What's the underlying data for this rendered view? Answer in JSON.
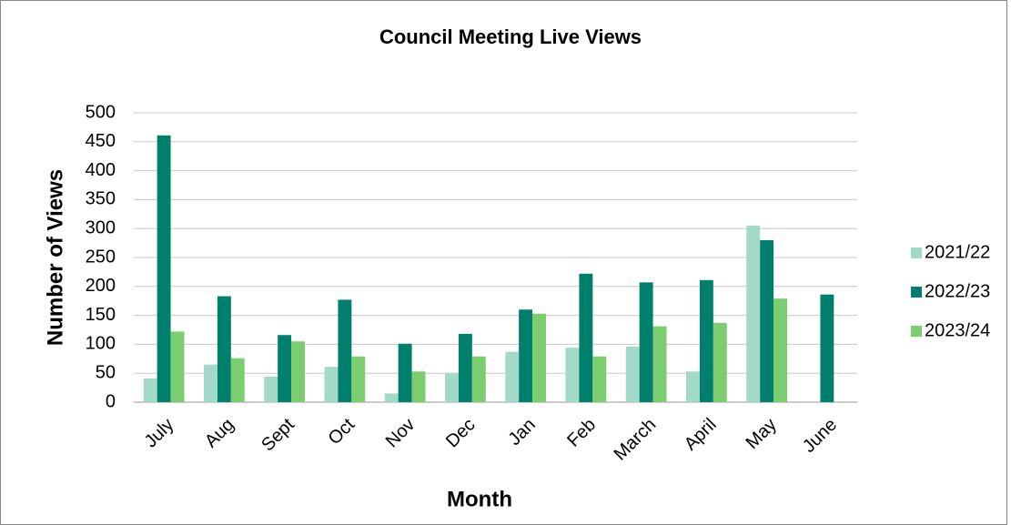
{
  "chart_data": {
    "type": "bar",
    "title": "Council Meeting Live Views",
    "x_label": "Month",
    "y_label": "Number of Views",
    "categories": [
      "July",
      "Aug",
      "Sept",
      "Oct",
      "Nov",
      "Dec",
      "Jan",
      "Feb",
      "March",
      "April",
      "May",
      "June"
    ],
    "series": [
      {
        "name": "2021/22",
        "color": "#a3d9c9",
        "values": [
          41,
          65,
          44,
          61,
          15,
          50,
          87,
          94,
          96,
          53,
          305,
          null
        ]
      },
      {
        "name": "2022/23",
        "color": "#00806c",
        "values": [
          461,
          183,
          116,
          177,
          101,
          118,
          160,
          222,
          207,
          211,
          280,
          186
        ]
      },
      {
        "name": "2023/24",
        "color": "#7ccd6f",
        "values": [
          122,
          76,
          105,
          79,
          53,
          79,
          153,
          79,
          131,
          137,
          179,
          null
        ]
      }
    ],
    "ylim": [
      0,
      500
    ],
    "yticks": [
      0,
      50,
      100,
      150,
      200,
      250,
      300,
      350,
      400,
      450,
      500
    ],
    "grid": true,
    "legend": "right"
  }
}
